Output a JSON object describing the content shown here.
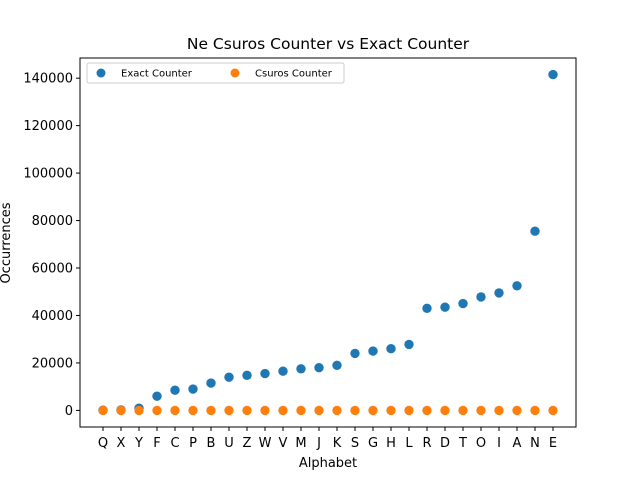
{
  "chart_data": {
    "type": "scatter",
    "title": "Ne Csuros Counter vs Exact Counter",
    "xlabel": "Alphabet",
    "ylabel": "Occurrences",
    "categories": [
      "Q",
      "X",
      "Y",
      "F",
      "C",
      "P",
      "B",
      "U",
      "Z",
      "W",
      "V",
      "M",
      "J",
      "K",
      "S",
      "G",
      "H",
      "L",
      "R",
      "D",
      "T",
      "O",
      "I",
      "A",
      "N",
      "E"
    ],
    "ylim": [
      -7000,
      148500
    ],
    "yticks": [
      0,
      20000,
      40000,
      60000,
      80000,
      100000,
      120000,
      140000
    ],
    "ytick_labels": [
      "0",
      "20000",
      "40000",
      "60000",
      "80000",
      "100000",
      "120000",
      "140000"
    ],
    "grid": false,
    "legend_position": "top-left",
    "legend_columns": 2,
    "series": [
      {
        "name": "Exact Counter",
        "color": "#1f77b4",
        "values": [
          80,
          200,
          900,
          6000,
          8500,
          9000,
          11500,
          14000,
          14800,
          15500,
          16500,
          17500,
          18000,
          19000,
          24000,
          25000,
          26000,
          27800,
          43000,
          43500,
          45000,
          47800,
          49500,
          52500,
          75500,
          141500
        ]
      },
      {
        "name": "Csuros Counter",
        "color": "#ff7f0e",
        "values": [
          0,
          0,
          0,
          0,
          0,
          0,
          0,
          0,
          0,
          0,
          0,
          0,
          0,
          0,
          0,
          0,
          0,
          0,
          0,
          0,
          0,
          0,
          0,
          0,
          0,
          0
        ]
      }
    ]
  }
}
